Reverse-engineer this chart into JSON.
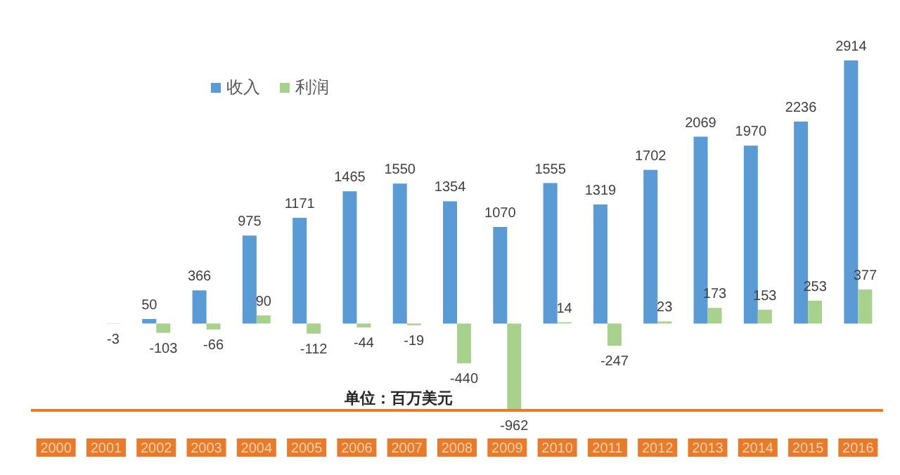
{
  "chart_data": {
    "type": "bar",
    "categories": [
      "2000",
      "2001",
      "2002",
      "2003",
      "2004",
      "2005",
      "2006",
      "2007",
      "2008",
      "2009",
      "2010",
      "2011",
      "2012",
      "2013",
      "2014",
      "2015",
      "2016"
    ],
    "series": [
      {
        "name": "收入",
        "color": "#5b9bd5",
        "values": [
          null,
          null,
          50,
          366,
          975,
          1171,
          1465,
          1550,
          1354,
          1070,
          1555,
          1319,
          1702,
          2069,
          1970,
          2236,
          2914
        ]
      },
      {
        "name": "利润",
        "color": "#a9d18e",
        "values": [
          null,
          -3,
          -103,
          -66,
          90,
          -112,
          -44,
          -19,
          -440,
          -962,
          14,
          -247,
          23,
          173,
          153,
          253,
          377
        ]
      }
    ],
    "data_labels": true,
    "legend": "top left",
    "annotations": [
      "单位：百万美元"
    ]
  }
}
